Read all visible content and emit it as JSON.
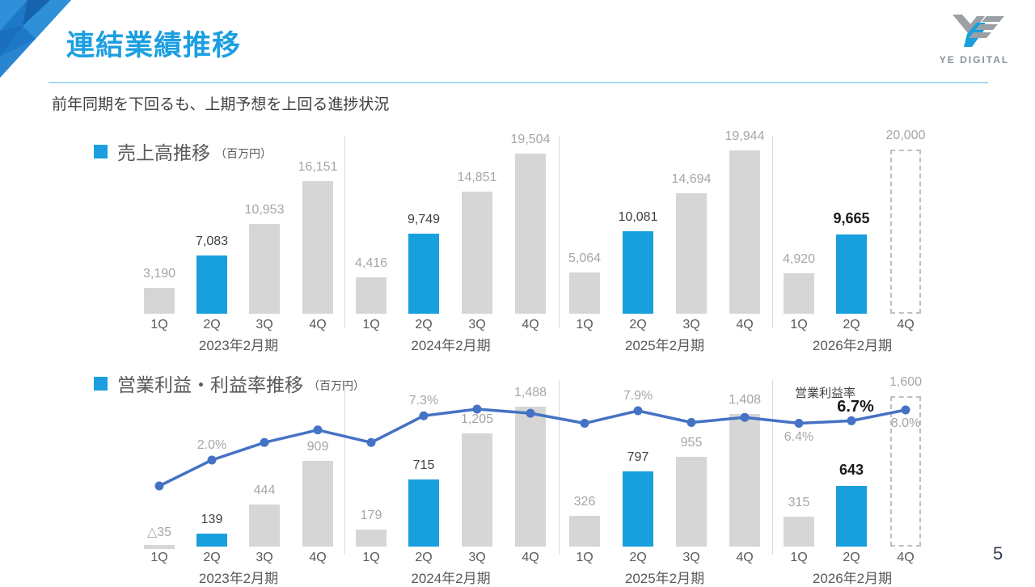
{
  "header": {
    "title": "連結業績推移",
    "subtitle": "前年同期を下回るも、上期予想を上回る進捗状況",
    "logo_text": "YE DIGITAL",
    "page_number": "5"
  },
  "colors": {
    "brand_blue": "#189FDD",
    "bar_gray": "#D6D6D6",
    "line_blue": "#4472C4",
    "gray_text": "#A6A6A6"
  },
  "chart_data": [
    {
      "id": "sales",
      "type": "bar",
      "title": "売上高推移",
      "unit": "（百万円）",
      "ylabel": "売上高（百万円）",
      "ylim": [
        0,
        20000
      ],
      "grid": false,
      "groups": [
        {
          "year": "2023年2月期",
          "quarters": [
            "1Q",
            "2Q",
            "3Q",
            "4Q"
          ],
          "values": [
            3190,
            7083,
            10953,
            16151
          ],
          "labels": [
            "3,190",
            "7,083",
            "10,953",
            "16,151"
          ],
          "styles": [
            "gray",
            "blue",
            "gray",
            "gray"
          ]
        },
        {
          "year": "2024年2月期",
          "quarters": [
            "1Q",
            "2Q",
            "3Q",
            "4Q"
          ],
          "values": [
            4416,
            9749,
            14851,
            19504
          ],
          "labels": [
            "4,416",
            "9,749",
            "14,851",
            "19,504"
          ],
          "styles": [
            "gray",
            "blue",
            "gray",
            "gray"
          ]
        },
        {
          "year": "2025年2月期",
          "quarters": [
            "1Q",
            "2Q",
            "3Q",
            "4Q"
          ],
          "values": [
            5064,
            10081,
            14694,
            19944
          ],
          "labels": [
            "5,064",
            "10,081",
            "14,694",
            "19,944"
          ],
          "styles": [
            "gray",
            "blue",
            "gray",
            "gray"
          ]
        },
        {
          "year": "2026年2月期",
          "quarters": [
            "1Q",
            "2Q",
            "4Q"
          ],
          "values": [
            4920,
            9665,
            20000
          ],
          "labels": [
            "4,920",
            "9,665",
            "20,000"
          ],
          "styles": [
            "gray",
            "blue-bold",
            "forecast"
          ]
        }
      ]
    },
    {
      "id": "profit",
      "type": "bar+line",
      "title": "営業利益・利益率推移",
      "unit": "（百万円）",
      "ylabel": "営業利益（百万円）",
      "ylim": [
        0,
        1600
      ],
      "grid": false,
      "groups": [
        {
          "year": "2023年2月期",
          "quarters": [
            "1Q",
            "2Q",
            "3Q",
            "4Q"
          ],
          "values": [
            -35,
            139,
            444,
            909
          ],
          "labels": [
            "△35",
            "139",
            "444",
            "909"
          ],
          "styles": [
            "gray",
            "blue",
            "gray",
            "gray"
          ]
        },
        {
          "year": "2024年2月期",
          "quarters": [
            "1Q",
            "2Q",
            "3Q",
            "4Q"
          ],
          "values": [
            179,
            715,
            1205,
            1488
          ],
          "labels": [
            "179",
            "715",
            "1,205",
            "1,488"
          ],
          "styles": [
            "gray",
            "blue",
            "gray",
            "gray"
          ]
        },
        {
          "year": "2025年2月期",
          "quarters": [
            "1Q",
            "2Q",
            "3Q",
            "4Q"
          ],
          "values": [
            326,
            797,
            955,
            1408
          ],
          "labels": [
            "326",
            "797",
            "955",
            "1,408"
          ],
          "styles": [
            "gray",
            "blue",
            "gray",
            "gray"
          ]
        },
        {
          "year": "2026年2月期",
          "quarters": [
            "1Q",
            "2Q",
            "4Q"
          ],
          "values": [
            315,
            643,
            1600
          ],
          "labels": [
            "315",
            "643",
            "1,600"
          ],
          "styles": [
            "gray",
            "blue-bold",
            "forecast"
          ]
        }
      ],
      "line": {
        "name": "営業利益率",
        "unit": "%",
        "values": [
          -1.1,
          2.0,
          4.1,
          5.6,
          4.1,
          7.3,
          8.1,
          7.6,
          6.4,
          7.9,
          6.5,
          7.1,
          6.4,
          6.7,
          8.0
        ],
        "point_labels": [
          {
            "index": 1,
            "text": "2.0%",
            "style": "gray",
            "position": "above"
          },
          {
            "index": 5,
            "text": "7.3%",
            "style": "gray",
            "position": "above"
          },
          {
            "index": 9,
            "text": "7.9%",
            "style": "gray",
            "position": "above"
          },
          {
            "index": 12,
            "text": "6.4%",
            "style": "gray",
            "position": "below"
          },
          {
            "index": 13,
            "text": "6.7%",
            "style": "bold",
            "position": "above"
          },
          {
            "index": 14,
            "text": "8.0%",
            "style": "gray",
            "position": "below"
          }
        ],
        "series_label": {
          "text": "営業利益率",
          "index": 13
        }
      }
    }
  ]
}
